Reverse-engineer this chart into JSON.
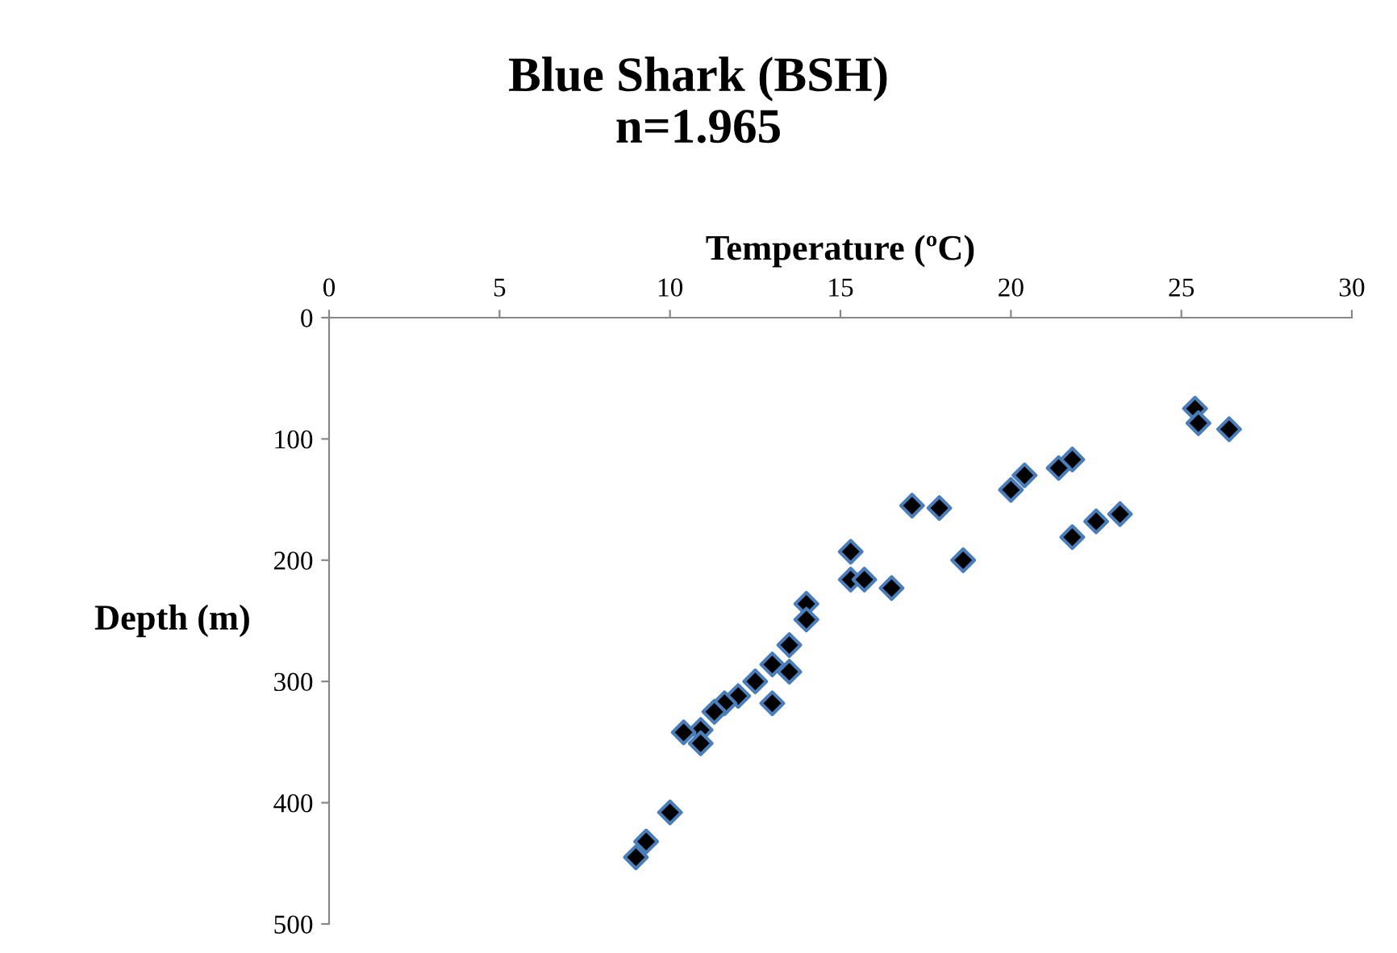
{
  "chart_data": {
    "type": "scatter",
    "title": "Blue Shark (BSH)\nn=1.965",
    "xlabel": "Temperature (ºC)",
    "ylabel": "Depth (m)",
    "x": [
      25.4,
      25.5,
      26.4,
      21.8,
      21.4,
      20.4,
      20.0,
      17.1,
      17.9,
      21.8,
      22.5,
      23.2,
      18.6,
      15.3,
      15.3,
      15.7,
      16.5,
      14.0,
      14.0,
      13.5,
      13.0,
      13.5,
      12.5,
      13.0,
      12.0,
      11.6,
      11.3,
      10.9,
      10.4,
      10.9,
      10.0,
      9.3,
      9.0
    ],
    "series": [
      {
        "color": "#000000",
        "values": [
          75,
          87,
          92,
          117,
          124,
          130,
          142,
          155,
          157,
          181,
          168,
          162,
          200,
          193,
          216,
          216,
          223,
          236,
          249,
          270,
          286,
          292,
          300,
          318,
          312,
          318,
          325,
          340,
          342,
          351,
          408,
          432,
          445
        ]
      }
    ],
    "marker": "diamond",
    "xlim": [
      0,
      30
    ],
    "xticks": [
      0,
      5,
      10,
      15,
      20,
      25,
      30
    ],
    "ylim": [
      500,
      0
    ],
    "yticks": [
      0,
      100,
      200,
      300,
      400,
      500
    ],
    "grid": false
  }
}
